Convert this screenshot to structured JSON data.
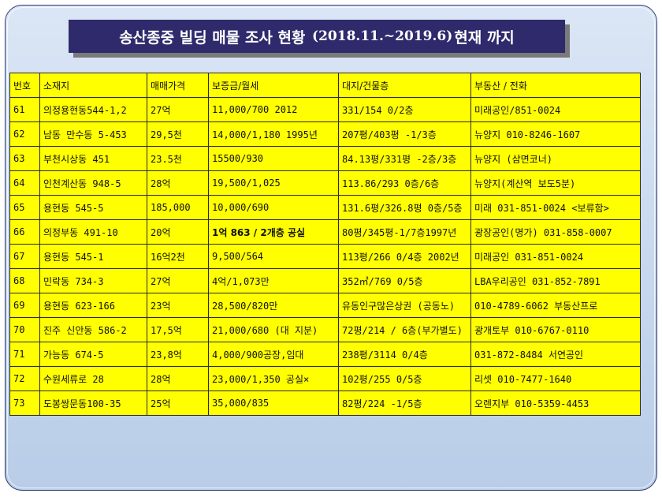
{
  "title": {
    "prefix": "송산종중 빌딩 매물 조사 현황",
    "date_range": "(2018.11.~2019.6)",
    "suffix": "현재 까지"
  },
  "table": {
    "headers": [
      "번호",
      "소재지",
      "매매가격",
      "보증금/월세",
      "대지/건물층",
      "부동산 / 전화"
    ],
    "rows": [
      [
        "61",
        "의정용현동544-1,2",
        "27억",
        "11,000/700 2012",
        "331/154  0/2층",
        "미래공인/851-0024"
      ],
      [
        "62",
        "남동 만수동 5-453",
        "29,5천",
        "14,000/1,180 1995년",
        "207평/403평  -1/3층",
        "뉴양지 010-8246-1607"
      ],
      [
        "63",
        "부천시상동 451",
        "23.5천",
        "15500/930",
        "84.13평/331평 -2층/3층",
        "뉴양지 (삼면코너)"
      ],
      [
        "64",
        "인천계산동 948-5",
        "28억",
        "19,500/1,025",
        "113.86/293 0층/6층",
        "뉴양지(계산역 보도5분)"
      ],
      [
        "65",
        "용현동  545-5",
        "185,000",
        "10,000/690",
        "131.6평/326.8평 0층/5층",
        "미래 031-851-0024 <보류함>"
      ],
      [
        "66",
        "의정부동 491-10",
        "20억",
        "1억 863 / 2개층 공실",
        "80평/345평-1/7층1997년",
        "광장공인(명가)  031-858-0007"
      ],
      [
        "67",
        "용현동 545-1",
        "16억2천",
        "9,500/564",
        "113평/266 0/4층 2002년",
        "미래공인 031-851-0024"
      ],
      [
        "68",
        "민락동 734-3",
        "27억",
        "4억/1,073만",
        "352㎡/769 0/5층",
        "LBA우리공인 031-852-7891"
      ],
      [
        "69",
        "용현동 623-166",
        "23억",
        "28,500/820만",
        "유동인구많은상권 (공동노)",
        "010-4789-6062 부동산프로"
      ],
      [
        "70",
        "진주 신안동 586-2",
        "17,5억",
        "21,000/680 (대 지분)",
        "72평/214 / 6층(부가별도)",
        "광개토부  010-6767-0110"
      ],
      [
        "71",
        "가능동 674-5",
        "23,8억",
        "4,000/900공장,임대",
        "238평/3114  0/4층",
        "031-872-8484 서연공인"
      ],
      [
        "72",
        "수원세류로 28",
        "28억",
        "23,000/1,350 공실×",
        "102평/255    0/5층",
        "리셋 010-7477-1640"
      ],
      [
        "73",
        "도봉쌍문동100-35",
        "25억",
        "35,000/835",
        "82평/224 -1/5층",
        "오렌지부  010-5359-4453"
      ]
    ]
  }
}
